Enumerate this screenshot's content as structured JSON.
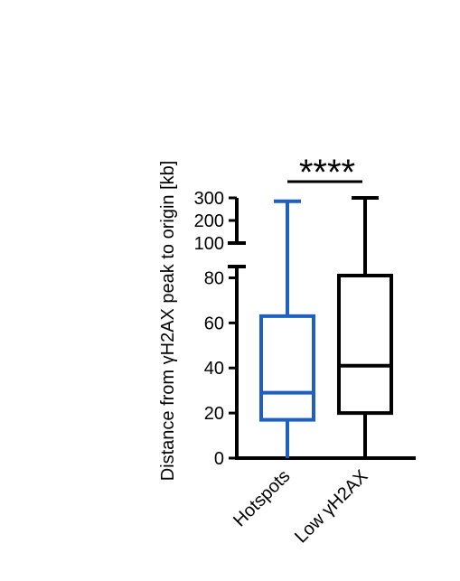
{
  "chart_data": {
    "type": "box",
    "ylabel": "Distance from γH2AX peak to origin [kb]",
    "categories": [
      "Hotspots",
      "Low γH2AX"
    ],
    "series": [
      {
        "category": "Hotspots",
        "color": "#1f5fbf",
        "min": 0,
        "q1": 17,
        "median": 29,
        "q3": 63,
        "max": 285
      },
      {
        "category": "Low γH2AX",
        "color": "#000000",
        "min": 0,
        "q1": 20,
        "median": 41,
        "q3": 81,
        "max": 300
      }
    ],
    "axis_lower": {
      "range": [
        0,
        85
      ],
      "ticks": [
        "0",
        "20",
        "40",
        "60",
        "80"
      ]
    },
    "axis_upper": {
      "range": [
        100,
        300
      ],
      "ticks": [
        "100",
        "200",
        "300"
      ]
    },
    "significance": "****"
  }
}
